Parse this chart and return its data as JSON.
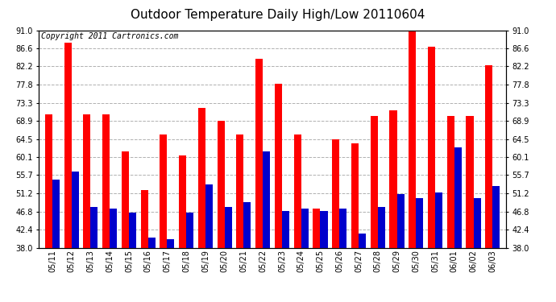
{
  "title": "Outdoor Temperature Daily High/Low 20110604",
  "copyright": "Copyright 2011 Cartronics.com",
  "categories": [
    "05/11",
    "05/12",
    "05/13",
    "05/14",
    "05/15",
    "05/16",
    "05/17",
    "05/18",
    "05/19",
    "05/20",
    "05/21",
    "05/22",
    "05/23",
    "05/24",
    "05/25",
    "05/26",
    "05/27",
    "05/28",
    "05/29",
    "05/30",
    "05/31",
    "06/01",
    "06/02",
    "06/03"
  ],
  "highs": [
    70.5,
    88.0,
    70.5,
    70.5,
    61.5,
    52.0,
    65.5,
    60.5,
    72.0,
    69.0,
    65.5,
    84.0,
    78.0,
    65.5,
    47.5,
    64.5,
    63.5,
    70.0,
    71.5,
    91.0,
    87.0,
    70.0,
    70.0,
    82.5
  ],
  "lows": [
    54.5,
    56.5,
    48.0,
    47.5,
    46.5,
    40.5,
    40.0,
    46.5,
    53.5,
    48.0,
    49.0,
    61.5,
    47.0,
    47.5,
    47.0,
    47.5,
    41.5,
    48.0,
    51.0,
    50.0,
    51.5,
    62.5,
    50.0,
    53.0
  ],
  "high_color": "#ff0000",
  "low_color": "#0000cc",
  "bg_color": "#ffffff",
  "plot_bg_color": "#ffffff",
  "grid_color": "#b0b0b0",
  "yticks": [
    38.0,
    42.4,
    46.8,
    51.2,
    55.7,
    60.1,
    64.5,
    68.9,
    73.3,
    77.8,
    82.2,
    86.6,
    91.0
  ],
  "ymin": 38.0,
  "ymax": 91.0,
  "bar_width": 0.38,
  "title_fontsize": 11,
  "tick_fontsize": 7,
  "copyright_fontsize": 7,
  "fig_width": 6.9,
  "fig_height": 3.75,
  "dpi": 100
}
